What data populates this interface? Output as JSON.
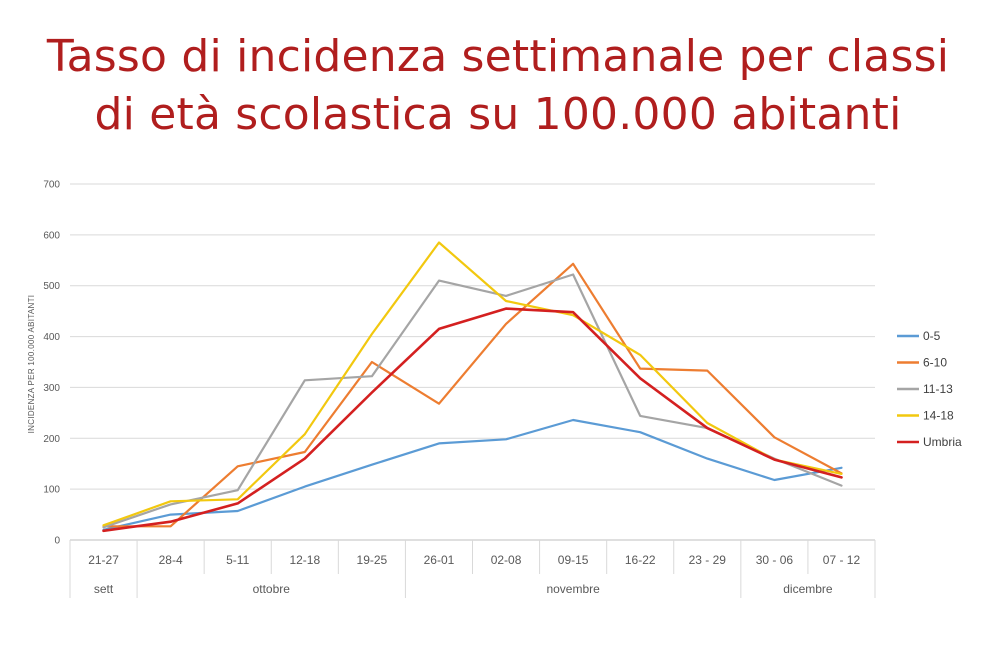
{
  "title_lines": [
    "Tasso di incidenza settimanale per classi",
    "di età scolastica su 100.000 abitanti"
  ],
  "chart_data": {
    "type": "line",
    "title": "Tasso di incidenza settimanale per classi di età scolastica su 100.000 abitanti",
    "xlabel": "",
    "ylabel": "INCIDENZA PER 100.000 ABITANTI",
    "ylim": [
      0,
      700
    ],
    "yticks": [
      0,
      100,
      200,
      300,
      400,
      500,
      600,
      700
    ],
    "grid": true,
    "legend_position": "right",
    "categories": [
      "21-27",
      "28-4",
      "5-11",
      "12-18",
      "19-25",
      "26-01",
      "02-08",
      "09-15",
      "16-22",
      "23 - 29",
      "30 - 06",
      "07 - 12"
    ],
    "groups": [
      {
        "label": "sett",
        "start": 0,
        "end": 0
      },
      {
        "label": "ottobre",
        "start": 1,
        "end": 4
      },
      {
        "label": "novembre",
        "start": 5,
        "end": 9
      },
      {
        "label": "dicembre",
        "start": 10,
        "end": 11
      }
    ],
    "series": [
      {
        "name": "0-5",
        "color": "#5b9bd5",
        "values": [
          20,
          50,
          57,
          105,
          148,
          190,
          198,
          236,
          212,
          160,
          118,
          142
        ]
      },
      {
        "name": "6-10",
        "color": "#ed7d31",
        "values": [
          27,
          27,
          145,
          173,
          350,
          268,
          425,
          543,
          337,
          333,
          202,
          131
        ]
      },
      {
        "name": "11-13",
        "color": "#a5a5a5",
        "values": [
          25,
          70,
          98,
          314,
          322,
          510,
          480,
          522,
          244,
          220,
          160,
          107
        ]
      },
      {
        "name": "14-18",
        "color": "#f2c80f",
        "values": [
          29,
          76,
          80,
          208,
          405,
          585,
          470,
          442,
          364,
          230,
          158,
          130
        ]
      },
      {
        "name": "Umbria",
        "color": "#d42020",
        "values": [
          18,
          36,
          72,
          160,
          290,
          415,
          455,
          448,
          318,
          220,
          158,
          123
        ]
      }
    ]
  }
}
